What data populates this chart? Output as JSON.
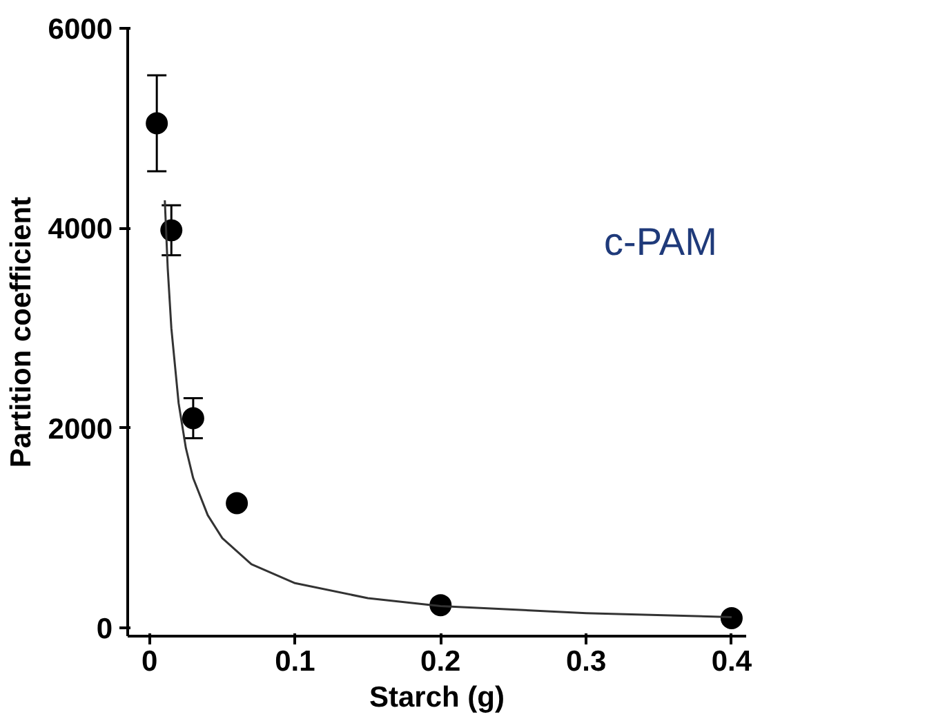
{
  "chart_data": {
    "type": "scatter",
    "xlabel": "Starch (g)",
    "ylabel": "Partition coefficient",
    "annotations": [
      "c-PAM"
    ],
    "xlim": [
      -0.015,
      0.41
    ],
    "ylim": [
      -80,
      6000
    ],
    "xticks": [
      0,
      0.1,
      0.2,
      0.3,
      0.4
    ],
    "yticks": [
      0,
      2000,
      4000,
      6000
    ],
    "grid": false,
    "marker": "circle",
    "series": [
      {
        "color": "#000000",
        "x": [
          0.005,
          0.015,
          0.03,
          0.06,
          0.2,
          0.4
        ],
        "values": [
          5050,
          3980,
          2100,
          1250,
          230,
          100
        ],
        "errors": [
          480,
          250,
          200,
          null,
          null,
          null
        ]
      },
      {
        "type": "line",
        "color": "#333333",
        "marker": "none",
        "line_style": "solid",
        "x": [
          0.0105,
          0.0125,
          0.015,
          0.02,
          0.025,
          0.03,
          0.04,
          0.05,
          0.07,
          0.1,
          0.15,
          0.2,
          0.3,
          0.4
        ],
        "values": [
          4280,
          3600,
          3000,
          2250,
          1800,
          1500,
          1130,
          900,
          640,
          450,
          300,
          220,
          150,
          110
        ]
      }
    ]
  }
}
